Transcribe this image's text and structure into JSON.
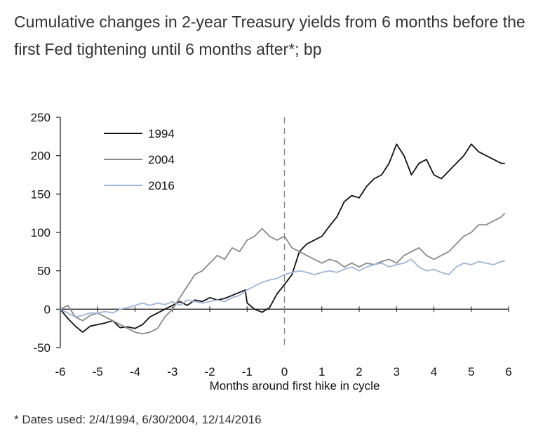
{
  "chart_data": {
    "type": "line",
    "title": "Cumulative changes in 2-year Treasury yields from 6 months before the first Fed tightening until 6 months after*; bp",
    "xlabel": "Months around first hike in cycle",
    "ylabel": "",
    "xlim": [
      -6,
      6
    ],
    "ylim": [
      -50,
      250
    ],
    "xticks": [
      -6,
      -5,
      -4,
      -3,
      -2,
      -1,
      0,
      1,
      2,
      3,
      4,
      5,
      6
    ],
    "yticks": [
      -50,
      0,
      50,
      100,
      150,
      200,
      250
    ],
    "legend_position": "top-left",
    "series": [
      {
        "name": "1994",
        "color": "#111111",
        "x": [
          -6,
          -5.8,
          -5.6,
          -5.4,
          -5.2,
          -5,
          -4.8,
          -4.6,
          -4.4,
          -4.2,
          -4,
          -3.8,
          -3.6,
          -3.4,
          -3.2,
          -3,
          -2.8,
          -2.6,
          -2.4,
          -2.2,
          -2,
          -1.8,
          -1.6,
          -1.4,
          -1.2,
          -1.05,
          -1,
          -0.8,
          -0.6,
          -0.4,
          -0.2,
          0,
          0.2,
          0.4,
          0.6,
          0.8,
          1,
          1.2,
          1.4,
          1.6,
          1.8,
          2,
          2.2,
          2.4,
          2.6,
          2.8,
          3,
          3.2,
          3.4,
          3.6,
          3.8,
          4,
          4.2,
          4.4,
          4.6,
          4.8,
          5,
          5.2,
          5.4,
          5.6,
          5.8,
          5.9
        ],
        "y": [
          0,
          -12,
          -22,
          -30,
          -22,
          -20,
          -18,
          -15,
          -24,
          -23,
          -25,
          -20,
          -10,
          -5,
          0,
          5,
          10,
          5,
          12,
          10,
          15,
          12,
          14,
          18,
          22,
          25,
          8,
          0,
          -4,
          2,
          20,
          32,
          45,
          75,
          85,
          90,
          95,
          108,
          120,
          140,
          148,
          145,
          160,
          170,
          175,
          190,
          215,
          200,
          175,
          190,
          195,
          175,
          170,
          180,
          190,
          200,
          215,
          205,
          200,
          195,
          190,
          190
        ]
      },
      {
        "name": "2004",
        "color": "#8a8a8a",
        "x": [
          -6,
          -5.8,
          -5.6,
          -5.4,
          -5.2,
          -5,
          -4.8,
          -4.6,
          -4.4,
          -4.2,
          -4,
          -3.8,
          -3.6,
          -3.4,
          -3.2,
          -3,
          -2.8,
          -2.6,
          -2.4,
          -2.2,
          -2,
          -1.8,
          -1.6,
          -1.4,
          -1.2,
          -1,
          -0.8,
          -0.6,
          -0.4,
          -0.2,
          0,
          0.2,
          0.4,
          0.6,
          0.8,
          1,
          1.2,
          1.4,
          1.6,
          1.8,
          2,
          2.2,
          2.4,
          2.6,
          2.8,
          3,
          3.2,
          3.4,
          3.6,
          3.8,
          4,
          4.2,
          4.4,
          4.6,
          4.8,
          5,
          5.2,
          5.4,
          5.6,
          5.8,
          5.9
        ],
        "y": [
          0,
          5,
          -10,
          -15,
          -8,
          -5,
          -10,
          -15,
          -20,
          -25,
          -30,
          -32,
          -30,
          -25,
          -10,
          0,
          15,
          30,
          45,
          50,
          60,
          70,
          65,
          80,
          75,
          90,
          95,
          105,
          95,
          90,
          95,
          80,
          75,
          70,
          65,
          60,
          65,
          62,
          55,
          60,
          55,
          60,
          58,
          62,
          65,
          60,
          70,
          75,
          80,
          70,
          65,
          70,
          75,
          85,
          95,
          100,
          110,
          110,
          115,
          120,
          125
        ]
      },
      {
        "name": "2016",
        "color": "#9fb6d8",
        "x": [
          -6,
          -5.8,
          -5.6,
          -5.4,
          -5.2,
          -5,
          -4.8,
          -4.6,
          -4.4,
          -4.2,
          -4,
          -3.8,
          -3.6,
          -3.4,
          -3.2,
          -3,
          -2.8,
          -2.6,
          -2.4,
          -2.2,
          -2,
          -1.8,
          -1.6,
          -1.4,
          -1.2,
          -1,
          -0.8,
          -0.6,
          -0.4,
          -0.2,
          0,
          0.2,
          0.4,
          0.6,
          0.8,
          1,
          1.2,
          1.4,
          1.6,
          1.8,
          2,
          2.2,
          2.4,
          2.6,
          2.8,
          3,
          3.2,
          3.4,
          3.6,
          3.8,
          4,
          4.2,
          4.4,
          4.6,
          4.8,
          5,
          5.2,
          5.4,
          5.6,
          5.8,
          5.9
        ],
        "y": [
          0,
          -5,
          -10,
          -8,
          -5,
          -5,
          -3,
          -5,
          0,
          2,
          5,
          8,
          5,
          8,
          6,
          10,
          5,
          12,
          10,
          8,
          10,
          12,
          10,
          15,
          18,
          25,
          30,
          35,
          38,
          40,
          45,
          48,
          50,
          48,
          45,
          48,
          50,
          48,
          52,
          55,
          50,
          55,
          58,
          60,
          55,
          58,
          60,
          65,
          55,
          50,
          52,
          48,
          45,
          55,
          60,
          58,
          62,
          60,
          58,
          62,
          63
        ]
      }
    ],
    "annotations": [
      {
        "type": "vertical-dashed-line",
        "x": 0
      }
    ]
  },
  "footnote": "* Dates used: 2/4/1994, 6/30/2004, 12/14/2016"
}
